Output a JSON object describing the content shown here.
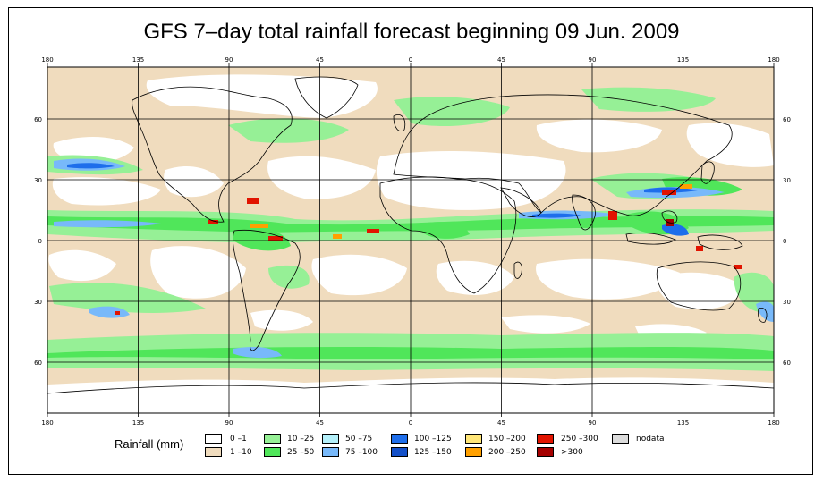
{
  "title": "GFS 7–day total rainfall forecast beginning 09 Jun. 2009",
  "axes": {
    "lon_top": [
      "180",
      "135",
      "90",
      "45",
      "0",
      "45",
      "90",
      "135",
      "180"
    ],
    "lon_bottom": [
      "180",
      "135",
      "90",
      "45",
      "0",
      "45",
      "90",
      "135",
      "180"
    ],
    "lat_left": [
      "60",
      "30",
      "0",
      "30",
      "60"
    ],
    "lat_right": [
      "60",
      "30",
      "0",
      "30",
      "60"
    ]
  },
  "legend": {
    "title": "Rainfall (mm)",
    "items": [
      {
        "label": "0 –1",
        "color": "#ffffff"
      },
      {
        "label": "1 –10",
        "color": "#f0dcbe"
      },
      {
        "label": "10 –25",
        "color": "#96f096"
      },
      {
        "label": "25 –50",
        "color": "#50e65a"
      },
      {
        "label": "50 –75",
        "color": "#b4f0fa"
      },
      {
        "label": "75 –100",
        "color": "#78b9fa"
      },
      {
        "label": "100 –125",
        "color": "#1e6eeb"
      },
      {
        "label": "125 –150",
        "color": "#1450c8"
      },
      {
        "label": "150 –200",
        "color": "#ffe678"
      },
      {
        "label": "200 –250",
        "color": "#ffa000"
      },
      {
        "label": "250 –300",
        "color": "#e11400"
      },
      {
        "label": ">300",
        "color": "#a50000"
      },
      {
        "label": "nodata",
        "color": "#dcdcdc"
      }
    ]
  },
  "colors": {
    "map_base": "#f0dcbe",
    "dry": "#ffffff",
    "light": "#96f096",
    "moderate": "#50e65a",
    "heavy": "#78b9fa",
    "very_heavy": "#1e6eeb",
    "extreme": "#e11400"
  }
}
